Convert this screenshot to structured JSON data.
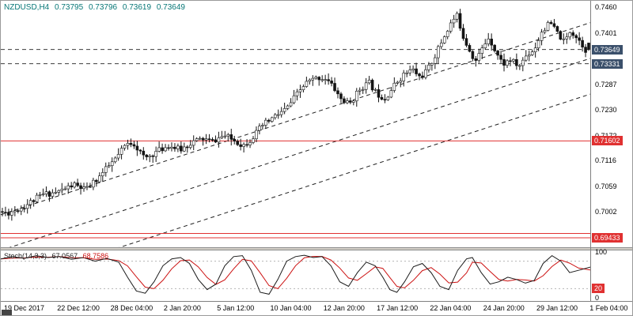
{
  "header": {
    "symbol_period": "NZDUSD,H4",
    "open": "0.73795",
    "high": "0.73796",
    "low": "0.73619",
    "close": "0.73649"
  },
  "colors": {
    "title": "#077777",
    "background": "#ffffff",
    "frame": "#9a9a9a",
    "bull": "#ffffff",
    "bear": "#141414",
    "outline": "#141414",
    "trendline": "#222222",
    "dashed_level": "#3c3c3c",
    "support": "#e03131",
    "axis_box_dark": "#3b506b",
    "stoch_main": "#1a1a1a",
    "stoch_signal": "#cc1111",
    "stoch_level": "#b5b5b5"
  },
  "chart_data": {
    "type": "candlestick",
    "symbol": "NZDUSD",
    "timeframe": "H4",
    "current_ohlc": {
      "open": 0.73795,
      "high": 0.73796,
      "low": 0.73619,
      "close": 0.73649
    },
    "y_range": {
      "top": 0.7474,
      "bottom": 0.6922
    },
    "y_axis_labels": [
      0.746,
      0.7401,
      0.7287,
      0.723,
      0.7172,
      0.7116,
      0.7059,
      0.7002
    ],
    "x_axis_labels": [
      "19 Dec 2017",
      "22 Dec 12:00",
      "28 Dec 04:00",
      "2 Jan 20:00",
      "5 Jan 12:00",
      "10 Jan 04:00",
      "12 Jan 20:00",
      "17 Jan 12:00",
      "22 Jan 04:00",
      "24 Jan 20:00",
      "29 Jan 12:00",
      "1 Feb 04:00"
    ],
    "price_lines": [
      {
        "price": 0.73649,
        "label": "0.73649",
        "style": "dash",
        "color": "#3c3c3c",
        "box": "#3b506b"
      },
      {
        "price": 0.73331,
        "label": "0.73331",
        "style": "dash",
        "color": "#3c3c3c",
        "box": "#3b506b"
      },
      {
        "price": 0.71602,
        "label": "0.71602",
        "style": "solid",
        "color": "#e03131",
        "box": "#e03131"
      },
      {
        "price": 0.6953,
        "label": null,
        "style": "solid",
        "color": "#e03131",
        "box": null
      },
      {
        "price": 0.69433,
        "label": "0.69433",
        "style": "solid",
        "color": "#e03131",
        "box": "#e03131"
      }
    ],
    "trendlines": [
      {
        "t1": 0,
        "p1": 0.6995,
        "t2": 1,
        "p2": 0.7425
      },
      {
        "t1": 0,
        "p1": 0.6915,
        "t2": 1,
        "p2": 0.7345
      },
      {
        "t1": 0,
        "p1": 0.6835,
        "t2": 1,
        "p2": 0.7265
      }
    ],
    "candle_count": 188,
    "price_path": [
      [
        0.0,
        0.7002
      ],
      [
        0.013,
        0.6998
      ],
      [
        0.04,
        0.7012
      ],
      [
        0.074,
        0.704
      ],
      [
        0.1,
        0.7046
      ],
      [
        0.127,
        0.7062
      ],
      [
        0.148,
        0.705
      ],
      [
        0.174,
        0.7085
      ],
      [
        0.2,
        0.7122
      ],
      [
        0.215,
        0.715
      ],
      [
        0.228,
        0.7158
      ],
      [
        0.248,
        0.712
      ],
      [
        0.268,
        0.7136
      ],
      [
        0.289,
        0.715
      ],
      [
        0.309,
        0.714
      ],
      [
        0.329,
        0.7158
      ],
      [
        0.349,
        0.7165
      ],
      [
        0.362,
        0.7158
      ],
      [
        0.383,
        0.7172
      ],
      [
        0.403,
        0.716
      ],
      [
        0.416,
        0.715
      ],
      [
        0.43,
        0.7165
      ],
      [
        0.45,
        0.7196
      ],
      [
        0.47,
        0.7215
      ],
      [
        0.49,
        0.7232
      ],
      [
        0.503,
        0.7256
      ],
      [
        0.523,
        0.729
      ],
      [
        0.544,
        0.7302
      ],
      [
        0.557,
        0.73
      ],
      [
        0.57,
        0.728
      ],
      [
        0.584,
        0.7252
      ],
      [
        0.597,
        0.7242
      ],
      [
        0.617,
        0.728
      ],
      [
        0.631,
        0.729
      ],
      [
        0.644,
        0.7266
      ],
      [
        0.658,
        0.7256
      ],
      [
        0.678,
        0.7292
      ],
      [
        0.691,
        0.731
      ],
      [
        0.705,
        0.732
      ],
      [
        0.718,
        0.7302
      ],
      [
        0.732,
        0.7322
      ],
      [
        0.745,
        0.7356
      ],
      [
        0.758,
        0.7392
      ],
      [
        0.772,
        0.7428
      ],
      [
        0.781,
        0.744
      ],
      [
        0.792,
        0.7392
      ],
      [
        0.803,
        0.7362
      ],
      [
        0.812,
        0.7338
      ],
      [
        0.826,
        0.7372
      ],
      [
        0.835,
        0.7394
      ],
      [
        0.846,
        0.7362
      ],
      [
        0.859,
        0.7332
      ],
      [
        0.872,
        0.7342
      ],
      [
        0.886,
        0.7326
      ],
      [
        0.899,
        0.7352
      ],
      [
        0.913,
        0.7366
      ],
      [
        0.926,
        0.7408
      ],
      [
        0.94,
        0.7424
      ],
      [
        0.953,
        0.74
      ],
      [
        0.964,
        0.738
      ],
      [
        0.974,
        0.7408
      ],
      [
        0.987,
        0.739
      ],
      [
        1.0,
        0.7365
      ]
    ],
    "stochastic": {
      "name": "Stoch(14,3,3)",
      "main_value": "67.0567",
      "signal_value": "68.7586",
      "range": [
        0,
        100
      ],
      "levels": [
        {
          "value": 100,
          "label": "100",
          "style": "plain"
        },
        {
          "value": 80,
          "style": "dashed"
        },
        {
          "value": 20,
          "label": "20",
          "style": "dashed",
          "box": true
        },
        {
          "value": 0,
          "label": "0",
          "style": "plain"
        }
      ],
      "path": [
        [
          0.0,
          85
        ],
        [
          0.02,
          90
        ],
        [
          0.04,
          86
        ],
        [
          0.06,
          92
        ],
        [
          0.08,
          88
        ],
        [
          0.1,
          90
        ],
        [
          0.12,
          84
        ],
        [
          0.14,
          88
        ],
        [
          0.16,
          80
        ],
        [
          0.18,
          86
        ],
        [
          0.2,
          78
        ],
        [
          0.215,
          45
        ],
        [
          0.23,
          15
        ],
        [
          0.245,
          10
        ],
        [
          0.26,
          35
        ],
        [
          0.275,
          70
        ],
        [
          0.29,
          85
        ],
        [
          0.305,
          88
        ],
        [
          0.32,
          75
        ],
        [
          0.335,
          40
        ],
        [
          0.35,
          18
        ],
        [
          0.365,
          30
        ],
        [
          0.38,
          70
        ],
        [
          0.395,
          90
        ],
        [
          0.41,
          92
        ],
        [
          0.425,
          60
        ],
        [
          0.44,
          12
        ],
        [
          0.455,
          8
        ],
        [
          0.47,
          40
        ],
        [
          0.485,
          80
        ],
        [
          0.5,
          90
        ],
        [
          0.515,
          93
        ],
        [
          0.53,
          88
        ],
        [
          0.545,
          90
        ],
        [
          0.56,
          70
        ],
        [
          0.575,
          35
        ],
        [
          0.59,
          25
        ],
        [
          0.605,
          55
        ],
        [
          0.62,
          78
        ],
        [
          0.635,
          70
        ],
        [
          0.648,
          45
        ],
        [
          0.66,
          18
        ],
        [
          0.672,
          12
        ],
        [
          0.685,
          35
        ],
        [
          0.7,
          68
        ],
        [
          0.715,
          75
        ],
        [
          0.73,
          55
        ],
        [
          0.745,
          25
        ],
        [
          0.76,
          18
        ],
        [
          0.775,
          60
        ],
        [
          0.79,
          85
        ],
        [
          0.8,
          88
        ],
        [
          0.815,
          55
        ],
        [
          0.83,
          30
        ],
        [
          0.845,
          35
        ],
        [
          0.86,
          45
        ],
        [
          0.875,
          40
        ],
        [
          0.89,
          32
        ],
        [
          0.905,
          38
        ],
        [
          0.92,
          75
        ],
        [
          0.935,
          92
        ],
        [
          0.95,
          80
        ],
        [
          0.965,
          55
        ],
        [
          0.98,
          60
        ],
        [
          1.0,
          67
        ]
      ]
    }
  }
}
